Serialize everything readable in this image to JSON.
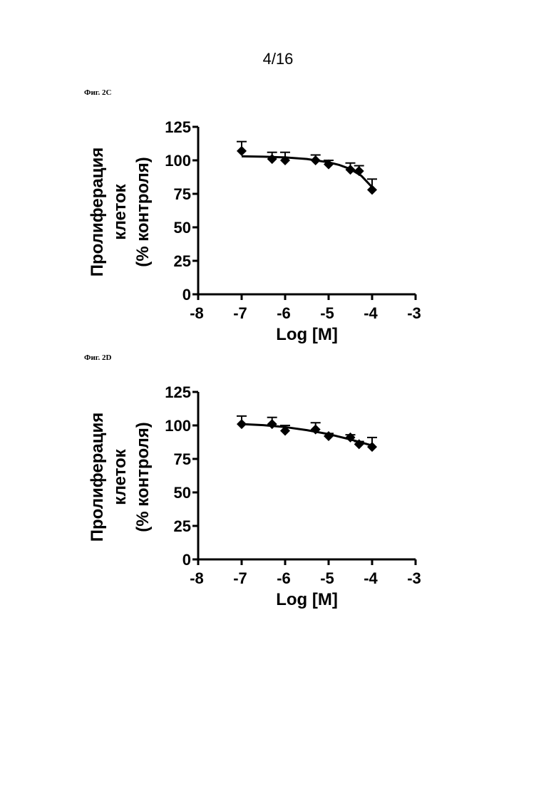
{
  "page_number": "4/16",
  "figures": [
    {
      "label": "Фиг. 2C"
    },
    {
      "label": "Фиг. 2D"
    }
  ],
  "chart_data": [
    {
      "type": "scatter",
      "title": "",
      "xlabel": "Log [M]",
      "ylabel_lines": [
        "Пролиферация",
        "клеток",
        "(% контроля)"
      ],
      "xlim": [
        -8,
        -3
      ],
      "ylim": [
        0,
        125
      ],
      "x_ticks": [
        -8,
        -7,
        -6,
        -5,
        -4,
        -3
      ],
      "y_ticks": [
        0,
        25,
        50,
        75,
        100,
        125
      ],
      "x_tick_labels": [
        "-8",
        "-7",
        "-6",
        "-5",
        "-4",
        "-3"
      ],
      "y_tick_labels": [
        "0",
        "25",
        "50",
        "75",
        "100",
        "125"
      ],
      "grid": false,
      "marker": "diamond",
      "x": [
        -7,
        -6.3,
        -6,
        -5.3,
        -5,
        -4.5,
        -4.3,
        -4
      ],
      "y": [
        107,
        101,
        100,
        100,
        97,
        93,
        92,
        78
      ],
      "error_upper": [
        7,
        5,
        6,
        4,
        3,
        5,
        4,
        8
      ],
      "fit_curve": {
        "x": [
          -7,
          -6.5,
          -6,
          -5.5,
          -5,
          -4.75,
          -4.5,
          -4.25,
          -4
        ],
        "y": [
          103,
          102.7,
          102.2,
          101,
          98.5,
          96.5,
          93.5,
          88.5,
          80
        ]
      }
    },
    {
      "type": "scatter",
      "title": "",
      "xlabel": "Log [M]",
      "ylabel_lines": [
        "Пролиферация",
        "клеток",
        "(% контроля)"
      ],
      "xlim": [
        -8,
        -3
      ],
      "ylim": [
        0,
        125
      ],
      "x_ticks": [
        -8,
        -7,
        -6,
        -5,
        -4,
        -3
      ],
      "y_ticks": [
        0,
        25,
        50,
        75,
        100,
        125
      ],
      "x_tick_labels": [
        "-8",
        "-7",
        "-6",
        "-5",
        "-4",
        "-3"
      ],
      "y_tick_labels": [
        "0",
        "25",
        "50",
        "75",
        "100",
        "125"
      ],
      "grid": false,
      "marker": "diamond",
      "x": [
        -7,
        -6.3,
        -6,
        -5.3,
        -5,
        -4.5,
        -4.3,
        -4
      ],
      "y": [
        101,
        101,
        96,
        97,
        92,
        91,
        86,
        84
      ],
      "error_upper": [
        6,
        5,
        4,
        5,
        2,
        2,
        2,
        7
      ],
      "fit_curve": {
        "x": [
          -7,
          -6.5,
          -6,
          -5.5,
          -5,
          -4.5,
          -4
        ],
        "y": [
          101,
          100.2,
          98.8,
          96.5,
          93.5,
          89.5,
          85
        ]
      }
    }
  ]
}
